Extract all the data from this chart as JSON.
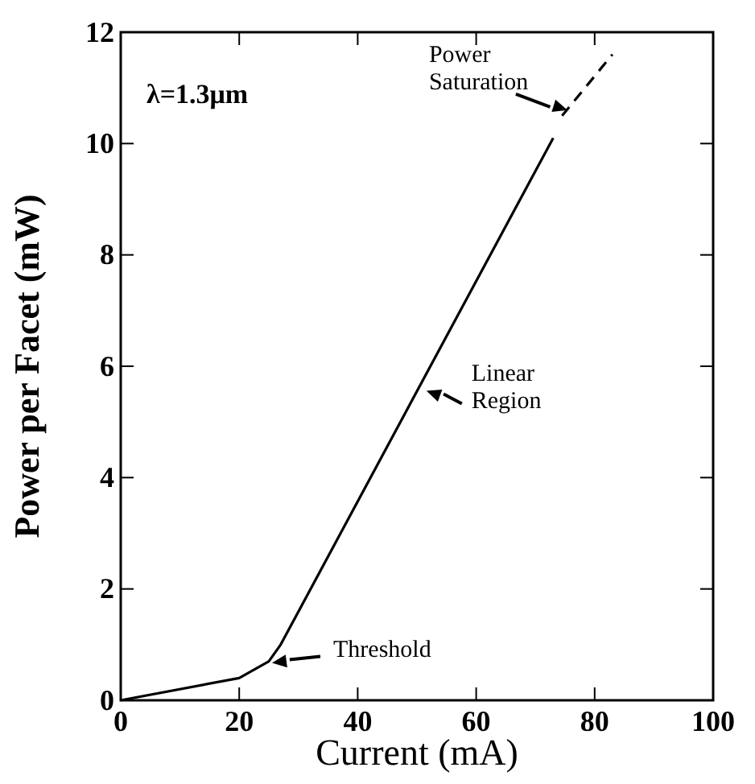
{
  "chart_data": {
    "type": "line",
    "xlabel": "Current (mA)",
    "ylabel": "Power per Facet (mW)",
    "xlim": [
      0,
      100
    ],
    "xticks": [
      0,
      20,
      40,
      60,
      80,
      100
    ],
    "ylim": [
      0,
      12
    ],
    "yticks": [
      0,
      2,
      4,
      6,
      8,
      10,
      12
    ],
    "series": [
      {
        "color": "#000000",
        "line_style": "solid",
        "x": [
          0,
          20,
          25,
          27,
          73
        ],
        "values": [
          0,
          0.4,
          0.7,
          1.0,
          10.1
        ]
      },
      {
        "color": "#000000",
        "line_style": "dashed",
        "x": [
          74.5,
          83
        ],
        "values": [
          10.5,
          11.6
        ]
      }
    ],
    "marker": "none",
    "grid": false,
    "annotations": [
      "λ=1.3μm",
      {
        "text": "Power Saturation",
        "x": 75.4,
        "y": 10.6
      },
      {
        "text": "Linear Region",
        "x": 51.6,
        "y": 5.56
      },
      {
        "text": "Threshold",
        "x": 25,
        "y": 0.7
      }
    ]
  }
}
